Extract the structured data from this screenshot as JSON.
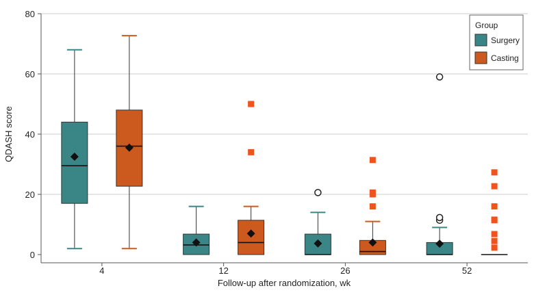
{
  "chart_data": {
    "type": "box",
    "title": "",
    "xlabel": "Follow-up after randomization, wk",
    "ylabel": "QDASH score",
    "ylim": [
      0,
      80
    ],
    "yticks": [
      0,
      20,
      40,
      60,
      80
    ],
    "grid": "horizontal",
    "categories": [
      "4",
      "12",
      "26",
      "52"
    ],
    "legend": {
      "title": "Group",
      "position": "top-right"
    },
    "colors": {
      "Surgery": "#3a8585",
      "Casting": "#cc5a1e",
      "outlier_casting": "#f0541e",
      "grid": "#cccccc"
    },
    "series": [
      {
        "name": "Surgery",
        "marker": "open-circle",
        "boxes": [
          {
            "whisker_low": 2,
            "q1": 17,
            "median": 29.5,
            "q3": 44,
            "whisker_high": 68,
            "mean": 32.5,
            "outliers": []
          },
          {
            "whisker_low": 0,
            "q1": 0,
            "median": 3.2,
            "q3": 6.8,
            "whisker_high": 16,
            "mean": 4,
            "outliers": []
          },
          {
            "whisker_low": 0,
            "q1": 0,
            "median": 0,
            "q3": 6.8,
            "whisker_high": 14,
            "mean": 3.7,
            "outliers": [
              20.6
            ]
          },
          {
            "whisker_low": 0,
            "q1": 0,
            "median": 0,
            "q3": 4,
            "whisker_high": 9,
            "mean": 3.6,
            "outliers": [
              11.4,
              12.3,
              59
            ]
          }
        ]
      },
      {
        "name": "Casting",
        "marker": "filled-square",
        "boxes": [
          {
            "whisker_low": 2,
            "q1": 22.7,
            "median": 36,
            "q3": 48,
            "whisker_high": 72.7,
            "mean": 35.5,
            "outliers": []
          },
          {
            "whisker_low": 0,
            "q1": 0,
            "median": 4,
            "q3": 11.4,
            "whisker_high": 16,
            "mean": 7,
            "outliers": [
              34,
              50
            ]
          },
          {
            "whisker_low": 0,
            "q1": 0,
            "median": 1,
            "q3": 4.7,
            "whisker_high": 11,
            "mean": 4,
            "outliers": [
              16,
              20,
              20.6,
              31.4
            ]
          },
          {
            "whisker_low": 0,
            "q1": 0,
            "median": 0,
            "q3": 0,
            "whisker_high": 0,
            "mean": 0,
            "outliers": [
              2.3,
              4.5,
              6.8,
              11.4,
              11.6,
              16,
              22.7,
              27.3
            ]
          }
        ]
      }
    ]
  }
}
